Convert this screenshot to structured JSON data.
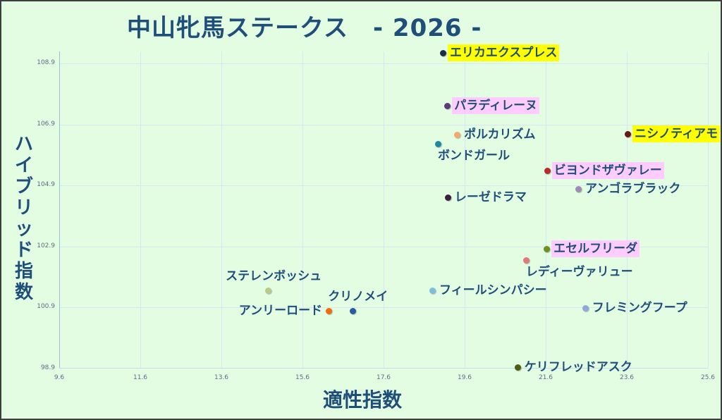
{
  "header": {
    "title": "中山牝馬ステークス　- 2026 -"
  },
  "chart_data": {
    "type": "scatter",
    "title": "中山牝馬ステークス　- 2026 -",
    "xlabel": "適性指数",
    "ylabel": "ハイブリッド指数",
    "xlim": [
      9.6,
      25.6
    ],
    "ylim": [
      98.9,
      109.3
    ],
    "xticks": [
      "9.6",
      "11.6",
      "13.6",
      "15.6",
      "17.6",
      "19.6",
      "21.6",
      "23.6",
      "25.6"
    ],
    "yticks": [
      "98.9",
      "100.9",
      "102.9",
      "104.9",
      "106.9",
      "108.9"
    ],
    "grid": true,
    "legend": "none",
    "highlight_colors": {
      "yellow": "#ffff00",
      "pink": "#ffccff"
    },
    "points": [
      {
        "name": "エリカエクスプレス",
        "x": 19.06,
        "y": 109.25,
        "color": "#1d2b4a",
        "highlight": "#ffff00",
        "label_pos": "right"
      },
      {
        "name": "パラディレーヌ",
        "x": 19.17,
        "y": 107.51,
        "color": "#5b3a7c",
        "highlight": "#ffccff",
        "label_pos": "right"
      },
      {
        "name": "ポルカリズム",
        "x": 19.41,
        "y": 106.57,
        "color": "#f4a86e",
        "highlight": "",
        "label_pos": "right"
      },
      {
        "name": "ボンドガール",
        "x": 18.94,
        "y": 106.27,
        "color": "#1e88a0",
        "highlight": "",
        "label_pos": "below"
      },
      {
        "name": "ニシノティアモ",
        "x": 23.62,
        "y": 106.59,
        "color": "#6a1616",
        "highlight": "#ffff00",
        "label_pos": "right"
      },
      {
        "name": "ビヨンドザヴァレー",
        "x": 21.63,
        "y": 105.39,
        "color": "#b92a2a",
        "highlight": "#ffccff",
        "label_pos": "right"
      },
      {
        "name": "アンゴラブラック",
        "x": 22.4,
        "y": 104.79,
        "color": "#a08ab8",
        "highlight": "",
        "label_pos": "right"
      },
      {
        "name": "レーゼドラマ",
        "x": 19.18,
        "y": 104.51,
        "color": "#3a1f3f",
        "highlight": "",
        "label_pos": "right"
      },
      {
        "name": "エセルフリーダ",
        "x": 21.62,
        "y": 102.83,
        "color": "#6e8f22",
        "highlight": "#ffccff",
        "label_pos": "right"
      },
      {
        "name": "レディーヴァリュー",
        "x": 21.11,
        "y": 102.46,
        "color": "#e07a7a",
        "highlight": "",
        "label_pos": "below"
      },
      {
        "name": "フィールシンパシー",
        "x": 18.8,
        "y": 101.46,
        "color": "#7ec0dc",
        "highlight": "",
        "label_pos": "right"
      },
      {
        "name": "フレミングフープ",
        "x": 22.57,
        "y": 100.89,
        "color": "#8fa8d8",
        "highlight": "",
        "label_pos": "right"
      },
      {
        "name": "ステレンボッシュ",
        "x": 14.75,
        "y": 101.46,
        "color": "#b9c98a",
        "highlight": "",
        "label_pos": "above"
      },
      {
        "name": "アンリーロード",
        "x": 16.24,
        "y": 100.79,
        "color": "#f26b0f",
        "highlight": "",
        "label_pos": "left"
      },
      {
        "name": "クリノメイ",
        "x": 16.83,
        "y": 100.79,
        "color": "#2a5aa0",
        "highlight": "",
        "label_pos": "above"
      },
      {
        "name": "ケリフレッドアスク",
        "x": 20.9,
        "y": 98.95,
        "color": "#4a5e14",
        "highlight": "",
        "label_pos": "right"
      }
    ]
  }
}
